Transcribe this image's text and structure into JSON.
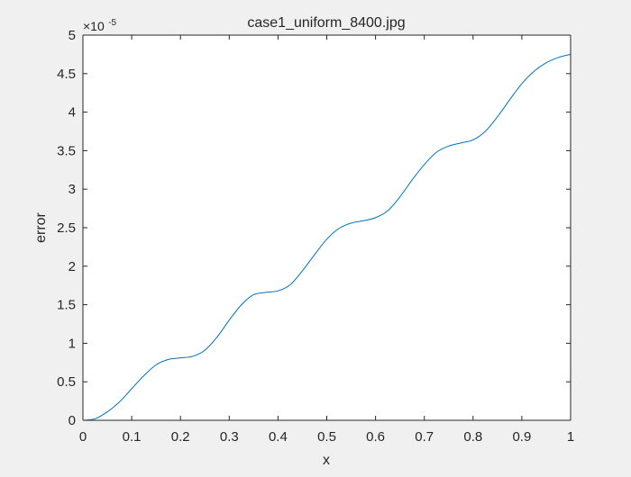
{
  "chart_data": {
    "type": "line",
    "title": "case1_uniform_8400.jpg",
    "xlabel": "x",
    "ylabel": "error",
    "y_exponent_prefix": "×10",
    "y_exponent_power": "-5",
    "xlim": [
      0,
      1
    ],
    "ylim": [
      0,
      5
    ],
    "y_scale_factor": 1e-05,
    "xticks": [
      0,
      0.1,
      0.2,
      0.3,
      0.4,
      0.5,
      0.6,
      0.7,
      0.8,
      0.9,
      1
    ],
    "xtick_labels": [
      "0",
      "0.1",
      "0.2",
      "0.3",
      "0.4",
      "0.5",
      "0.6",
      "0.7",
      "0.8",
      "0.9",
      "1"
    ],
    "yticks": [
      0,
      0.5,
      1,
      1.5,
      2,
      2.5,
      3,
      3.5,
      4,
      4.5,
      5
    ],
    "ytick_labels": [
      "0",
      "0.5",
      "1",
      "1.5",
      "2",
      "2.5",
      "3",
      "3.5",
      "4",
      "4.5",
      "5"
    ],
    "grid": false,
    "series": [
      {
        "color": "#0072bd",
        "x": [
          0,
          0.025,
          0.05,
          0.075,
          0.1,
          0.125,
          0.15,
          0.175,
          0.2,
          0.225,
          0.25,
          0.275,
          0.3,
          0.325,
          0.35,
          0.375,
          0.4,
          0.425,
          0.45,
          0.475,
          0.5,
          0.525,
          0.55,
          0.575,
          0.6,
          0.625,
          0.65,
          0.675,
          0.7,
          0.725,
          0.75,
          0.775,
          0.8,
          0.825,
          0.85,
          0.875,
          0.9,
          0.925,
          0.95,
          0.975,
          1
        ],
        "y": [
          0,
          0.02,
          0.11,
          0.24,
          0.41,
          0.58,
          0.72,
          0.79,
          0.81,
          0.83,
          0.91,
          1.08,
          1.3,
          1.5,
          1.63,
          1.66,
          1.68,
          1.76,
          1.94,
          2.15,
          2.35,
          2.49,
          2.56,
          2.59,
          2.63,
          2.72,
          2.9,
          3.12,
          3.32,
          3.48,
          3.56,
          3.6,
          3.64,
          3.75,
          3.94,
          4.16,
          4.37,
          4.53,
          4.64,
          4.71,
          4.75
        ]
      }
    ]
  }
}
